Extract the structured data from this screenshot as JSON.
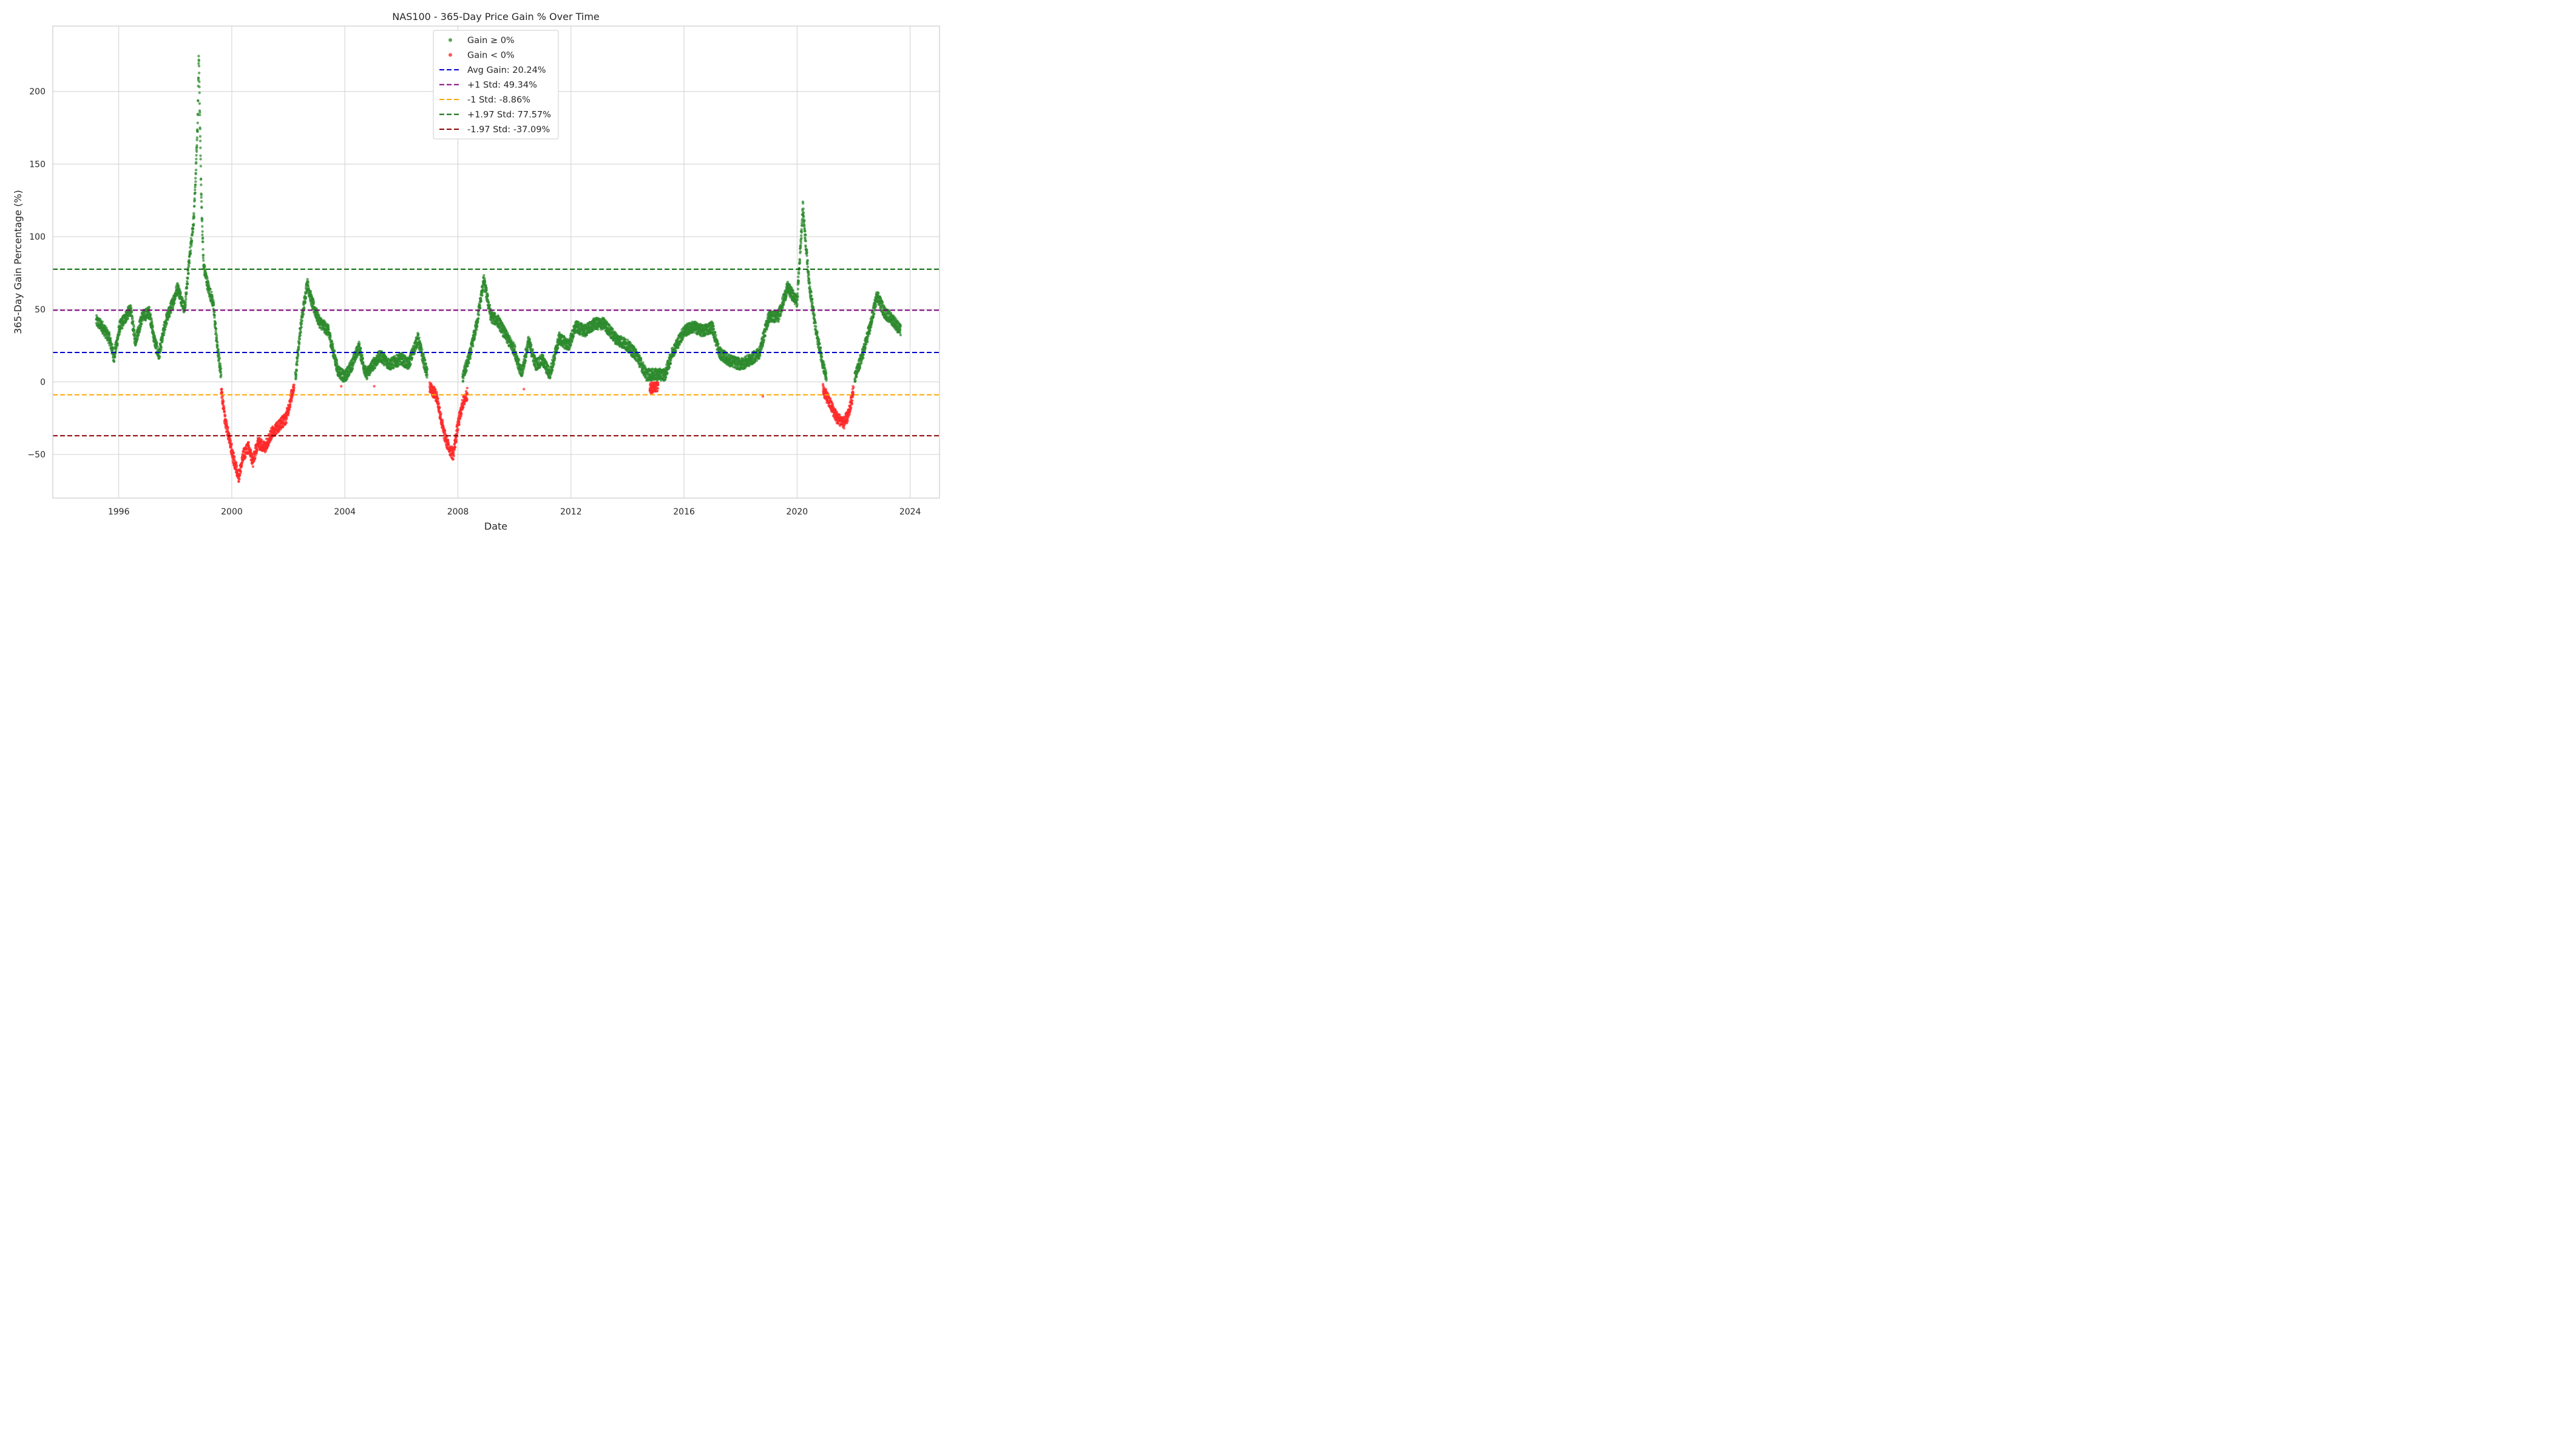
{
  "chart_data": {
    "type": "scatter",
    "title": "NAS100 - 365-Day Price Gain % Over Time",
    "xlabel": "Date",
    "ylabel": "365-Day Gain Percentage (%)",
    "xlim": [
      "1993-09-01",
      "2025-01-15"
    ],
    "ylim": [
      -80,
      245
    ],
    "x_ticks": [
      "1996",
      "2000",
      "2004",
      "2008",
      "2012",
      "2016",
      "2020",
      "2024"
    ],
    "y_ticks": [
      -50,
      0,
      50,
      100,
      150,
      200
    ],
    "grid": true,
    "legend_position": "top-center",
    "colors": {
      "gain_pos": "#2e8b2e",
      "gain_neg": "#ff2a2a",
      "avg": "#0000cc",
      "plus1": "#800080",
      "minus1": "#ffa500",
      "plus197": "#006400",
      "minus197": "#8b0000",
      "grid": "#d0d0d0"
    },
    "series": [
      {
        "name": "Gain ≥ 0%",
        "marker": "dot",
        "color": "#2e8b2e",
        "points": [
          [
            "1995-03-15",
            42
          ],
          [
            "1995-06-01",
            38
          ],
          [
            "1995-09-01",
            30
          ],
          [
            "1995-11-01",
            17
          ],
          [
            "1996-01-15",
            38
          ],
          [
            "1996-04-01",
            45
          ],
          [
            "1996-06-01",
            50
          ],
          [
            "1996-08-01",
            28
          ],
          [
            "1996-11-01",
            45
          ],
          [
            "1997-02-01",
            48
          ],
          [
            "1997-04-01",
            30
          ],
          [
            "1997-06-01",
            18
          ],
          [
            "1997-09-01",
            42
          ],
          [
            "1997-12-01",
            55
          ],
          [
            "1998-02-01",
            65
          ],
          [
            "1998-05-01",
            50
          ],
          [
            "1998-07-01",
            85
          ],
          [
            "1998-09-01",
            115
          ],
          [
            "1998-10-15",
            175
          ],
          [
            "1998-11-01",
            225
          ],
          [
            "1998-12-01",
            130
          ],
          [
            "1999-01-01",
            80
          ],
          [
            "1999-03-01",
            65
          ],
          [
            "1999-05-01",
            55
          ],
          [
            "1999-07-01",
            22
          ],
          [
            "1999-08-15",
            5
          ],
          [
            "2002-04-01",
            3
          ],
          [
            "2002-06-01",
            35
          ],
          [
            "2002-09-01",
            68
          ],
          [
            "2002-11-01",
            55
          ],
          [
            "2003-02-01",
            42
          ],
          [
            "2003-06-01",
            35
          ],
          [
            "2003-10-01",
            8
          ],
          [
            "2004-01-01",
            3
          ],
          [
            "2004-04-01",
            12
          ],
          [
            "2004-07-01",
            24
          ],
          [
            "2004-10-01",
            5
          ],
          [
            "2005-01-01",
            12
          ],
          [
            "2005-04-01",
            18
          ],
          [
            "2005-08-01",
            12
          ],
          [
            "2006-01-01",
            16
          ],
          [
            "2006-04-01",
            12
          ],
          [
            "2006-08-01",
            30
          ],
          [
            "2006-12-01",
            5
          ],
          [
            "2008-03-01",
            3
          ],
          [
            "2008-06-01",
            18
          ],
          [
            "2008-09-01",
            40
          ],
          [
            "2008-12-01",
            70
          ],
          [
            "2009-03-01",
            45
          ],
          [
            "2009-06-01",
            42
          ],
          [
            "2009-10-01",
            30
          ],
          [
            "2010-01-01",
            22
          ],
          [
            "2010-04-01",
            5
          ],
          [
            "2010-07-01",
            28
          ],
          [
            "2010-10-01",
            12
          ],
          [
            "2011-01-01",
            15
          ],
          [
            "2011-04-01",
            5
          ],
          [
            "2011-08-01",
            30
          ],
          [
            "2011-12-01",
            25
          ],
          [
            "2012-03-01",
            38
          ],
          [
            "2012-07-01",
            35
          ],
          [
            "2012-11-01",
            40
          ],
          [
            "2013-03-01",
            40
          ],
          [
            "2013-08-01",
            30
          ],
          [
            "2014-01-01",
            25
          ],
          [
            "2014-05-01",
            18
          ],
          [
            "2014-09-01",
            5
          ],
          [
            "2015-01-01",
            5
          ],
          [
            "2015-05-01",
            5
          ],
          [
            "2015-08-01",
            20
          ],
          [
            "2016-01-01",
            35
          ],
          [
            "2016-05-01",
            38
          ],
          [
            "2016-09-01",
            35
          ],
          [
            "2017-01-01",
            38
          ],
          [
            "2017-04-01",
            20
          ],
          [
            "2017-08-01",
            15
          ],
          [
            "2018-01-01",
            12
          ],
          [
            "2018-05-01",
            15
          ],
          [
            "2018-09-01",
            20
          ],
          [
            "2019-01-01",
            45
          ],
          [
            "2019-05-01",
            45
          ],
          [
            "2019-09-01",
            65
          ],
          [
            "2020-01-01",
            55
          ],
          [
            "2020-03-15",
            120
          ],
          [
            "2020-06-01",
            70
          ],
          [
            "2020-09-01",
            35
          ],
          [
            "2020-11-01",
            20
          ],
          [
            "2021-01-15",
            2
          ],
          [
            "2022-01-15",
            2
          ],
          [
            "2022-05-01",
            20
          ],
          [
            "2022-08-01",
            38
          ],
          [
            "2022-11-01",
            60
          ],
          [
            "2023-02-01",
            48
          ],
          [
            "2023-06-01",
            42
          ],
          [
            "2023-09-01",
            35
          ]
        ]
      },
      {
        "name": "Gain < 0%",
        "marker": "dot",
        "color": "#ff2a2a",
        "points": [
          [
            "1999-08-15",
            -5
          ],
          [
            "1999-10-01",
            -25
          ],
          [
            "1999-12-01",
            -40
          ],
          [
            "2000-02-01",
            -55
          ],
          [
            "2000-04-01",
            -65
          ],
          [
            "2000-06-01",
            -50
          ],
          [
            "2000-08-01",
            -45
          ],
          [
            "2000-10-01",
            -55
          ],
          [
            "2000-12-01",
            -42
          ],
          [
            "2001-03-01",
            -45
          ],
          [
            "2001-06-01",
            -35
          ],
          [
            "2001-09-01",
            -30
          ],
          [
            "2001-12-01",
            -25
          ],
          [
            "2002-02-01",
            -12
          ],
          [
            "2002-03-15",
            -2
          ],
          [
            "2003-11-15",
            -3
          ],
          [
            "2005-01-15",
            -3
          ],
          [
            "2007-01-01",
            -3
          ],
          [
            "2007-04-01",
            -10
          ],
          [
            "2007-07-01",
            -35
          ],
          [
            "2007-09-01",
            -45
          ],
          [
            "2007-11-01",
            -50
          ],
          [
            "2008-01-01",
            -30
          ],
          [
            "2008-03-01",
            -15
          ],
          [
            "2008-05-01",
            -8
          ],
          [
            "2010-05-01",
            -5
          ],
          [
            "2014-10-15",
            -5
          ],
          [
            "2015-02-01",
            -2
          ],
          [
            "2018-10-15",
            -10
          ],
          [
            "2020-12-01",
            -5
          ],
          [
            "2021-03-01",
            -15
          ],
          [
            "2021-06-01",
            -25
          ],
          [
            "2021-09-01",
            -28
          ],
          [
            "2021-11-01",
            -22
          ],
          [
            "2022-01-01",
            -5
          ]
        ]
      }
    ],
    "reference_lines": [
      {
        "name": "Avg Gain: 20.24%",
        "y": 20.24,
        "color": "#0000cc"
      },
      {
        "name": "+1 Std: 49.34%",
        "y": 49.34,
        "color": "#800080"
      },
      {
        "name": "-1 Std: -8.86%",
        "y": -8.86,
        "color": "#ffa500"
      },
      {
        "name": "+1.97 Std: 77.57%",
        "y": 77.57,
        "color": "#006400"
      },
      {
        "name": "-1.97 Std: -37.09%",
        "y": -37.09,
        "color": "#8b0000"
      }
    ]
  }
}
